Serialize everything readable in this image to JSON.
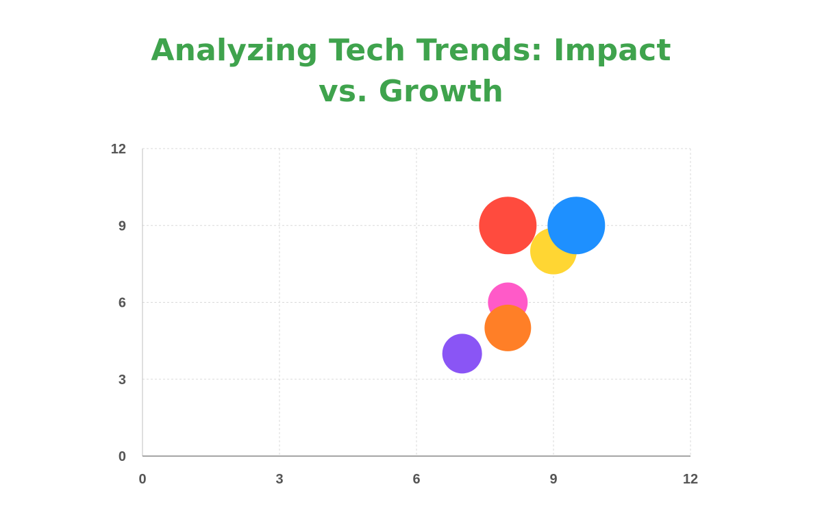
{
  "title_line1": "Analyzing Tech Trends: Impact",
  "title_line2": "vs. Growth",
  "chart_data": {
    "type": "bubble",
    "title": "Analyzing Tech Trends: Impact vs. Growth",
    "xlim": [
      0,
      12
    ],
    "ylim": [
      0,
      12
    ],
    "xticks": [
      0,
      3,
      6,
      9,
      12
    ],
    "yticks": [
      0,
      3,
      6,
      9,
      12
    ],
    "grid": true,
    "points": [
      {
        "x": 8,
        "y": 9,
        "size": 42,
        "color": "#ff4b3e"
      },
      {
        "x": 9,
        "y": 8,
        "size": 34,
        "color": "#ffd633"
      },
      {
        "x": 9.5,
        "y": 9,
        "size": 42,
        "color": "#1e90ff"
      },
      {
        "x": 8,
        "y": 6,
        "size": 29,
        "color": "#ff5ac8"
      },
      {
        "x": 8,
        "y": 5,
        "size": 34,
        "color": "#ff7f27"
      },
      {
        "x": 7,
        "y": 4,
        "size": 29,
        "color": "#8a55f5"
      }
    ]
  }
}
